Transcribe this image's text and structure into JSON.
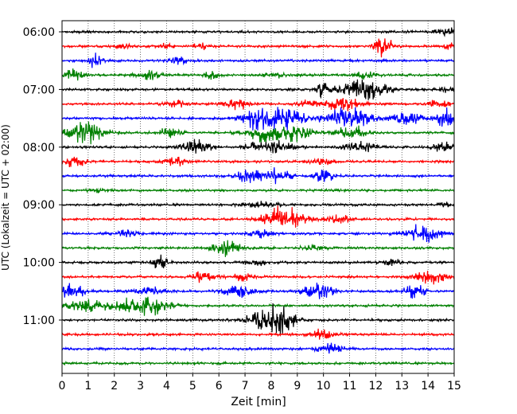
{
  "chart_data": {
    "type": "line",
    "title": "",
    "xlabel": "Zeit  [min]",
    "ylabel": "UTC (Lokalzeit = UTC + 02:00)",
    "xlim": [
      0,
      15
    ],
    "x_ticks": [
      "0",
      "1",
      "2",
      "3",
      "4",
      "5",
      "6",
      "7",
      "8",
      "9",
      "10",
      "11",
      "12",
      "13",
      "14",
      "15"
    ],
    "y_ticks": [
      "06:00",
      "07:00",
      "08:00",
      "09:00",
      "10:00",
      "11:00"
    ],
    "trace_interval_min": 15,
    "grid": "vertical dotted",
    "color_cycle": [
      "#000000",
      "#ff0000",
      "#0000ff",
      "#008000"
    ],
    "series": [
      {
        "start": "06:00",
        "color": "#000000",
        "bursts": [
          [
            14.7,
            0.6,
            0.3
          ]
        ]
      },
      {
        "start": "06:15",
        "color": "#ff0000",
        "bursts": [
          [
            2.3,
            0.5,
            0.2
          ],
          [
            4.0,
            0.4,
            0.2
          ],
          [
            5.3,
            0.5,
            0.2
          ],
          [
            12.3,
            1.6,
            0.25
          ],
          [
            14.8,
            0.4,
            0.2
          ]
        ]
      },
      {
        "start": "06:30",
        "color": "#0000ff",
        "bursts": [
          [
            1.3,
            1.4,
            0.15
          ],
          [
            4.4,
            0.5,
            0.3
          ]
        ]
      },
      {
        "start": "06:45",
        "color": "#008000",
        "bursts": [
          [
            0.4,
            1.0,
            0.3
          ],
          [
            3.3,
            0.7,
            0.3
          ],
          [
            5.7,
            0.5,
            0.2
          ],
          [
            8.1,
            0.4,
            0.3
          ],
          [
            11.6,
            0.5,
            0.3
          ]
        ]
      },
      {
        "start": "07:00",
        "color": "#000000",
        "bursts": [
          [
            10.0,
            1.5,
            0.2
          ],
          [
            11.3,
            1.3,
            0.5
          ],
          [
            11.9,
            1.0,
            0.2
          ],
          [
            12.5,
            0.5,
            0.2
          ],
          [
            14.8,
            0.5,
            0.2
          ]
        ]
      },
      {
        "start": "07:15",
        "color": "#ff0000",
        "bursts": [
          [
            4.4,
            0.5,
            0.3
          ],
          [
            6.7,
            0.9,
            0.3
          ],
          [
            9.4,
            0.5,
            0.3
          ],
          [
            10.6,
            1.2,
            0.3
          ],
          [
            11.2,
            0.5,
            0.3
          ],
          [
            14.4,
            0.6,
            0.3
          ]
        ]
      },
      {
        "start": "07:30",
        "color": "#0000ff",
        "bursts": [
          [
            7.4,
            1.6,
            0.4
          ],
          [
            8.5,
            1.8,
            0.5
          ],
          [
            10.9,
            1.8,
            0.6
          ],
          [
            13.2,
            0.9,
            0.4
          ],
          [
            14.7,
            1.6,
            0.3
          ]
        ]
      },
      {
        "start": "07:45",
        "color": "#008000",
        "bursts": [
          [
            0.9,
            1.8,
            0.5
          ],
          [
            4.1,
            0.7,
            0.3
          ],
          [
            7.8,
            1.4,
            0.5
          ],
          [
            9.0,
            1.2,
            0.4
          ],
          [
            11.1,
            1.1,
            0.4
          ]
        ]
      },
      {
        "start": "08:00",
        "color": "#000000",
        "bursts": [
          [
            5.1,
            1.2,
            0.4
          ],
          [
            7.3,
            0.7,
            0.3
          ],
          [
            8.3,
            0.9,
            0.4
          ],
          [
            11.4,
            0.9,
            0.4
          ],
          [
            14.6,
            0.7,
            0.3
          ]
        ]
      },
      {
        "start": "08:15",
        "color": "#ff0000",
        "bursts": [
          [
            0.5,
            0.9,
            0.25
          ],
          [
            4.3,
            0.8,
            0.3
          ],
          [
            9.9,
            0.5,
            0.3
          ]
        ]
      },
      {
        "start": "08:30",
        "color": "#0000ff",
        "bursts": [
          [
            7.1,
            0.9,
            0.3
          ],
          [
            8.1,
            1.3,
            0.4
          ],
          [
            10.0,
            0.8,
            0.3
          ]
        ]
      },
      {
        "start": "08:45",
        "color": "#008000",
        "bursts": [
          [
            1.5,
            0.3,
            0.3
          ]
        ]
      },
      {
        "start": "09:00",
        "color": "#000000",
        "bursts": [
          [
            7.6,
            0.4,
            0.5
          ],
          [
            14.8,
            0.3,
            0.3
          ]
        ]
      },
      {
        "start": "09:15",
        "color": "#ff0000",
        "bursts": [
          [
            8.5,
            2.2,
            0.5
          ],
          [
            10.6,
            0.6,
            0.3
          ]
        ]
      },
      {
        "start": "09:30",
        "color": "#0000ff",
        "bursts": [
          [
            2.5,
            0.5,
            0.3
          ],
          [
            7.6,
            0.6,
            0.3
          ],
          [
            13.8,
            1.4,
            0.5
          ]
        ]
      },
      {
        "start": "09:45",
        "color": "#008000",
        "bursts": [
          [
            6.3,
            1.2,
            0.35
          ],
          [
            9.6,
            0.4,
            0.3
          ]
        ]
      },
      {
        "start": "10:00",
        "color": "#000000",
        "bursts": [
          [
            3.8,
            1.5,
            0.2
          ],
          [
            7.4,
            0.5,
            0.3
          ],
          [
            12.6,
            0.5,
            0.25
          ]
        ]
      },
      {
        "start": "10:15",
        "color": "#ff0000",
        "bursts": [
          [
            5.4,
            0.8,
            0.3
          ],
          [
            6.9,
            0.5,
            0.3
          ],
          [
            14.1,
            1.0,
            0.4
          ]
        ]
      },
      {
        "start": "10:30",
        "color": "#0000ff",
        "bursts": [
          [
            0.4,
            1.3,
            0.3
          ],
          [
            3.3,
            0.8,
            0.4
          ],
          [
            6.7,
            0.9,
            0.4
          ],
          [
            9.8,
            1.2,
            0.4
          ],
          [
            13.5,
            1.0,
            0.3
          ]
        ]
      },
      {
        "start": "10:45",
        "color": "#008000",
        "bursts": [
          [
            0.9,
            1.0,
            0.5
          ],
          [
            2.5,
            0.8,
            0.5
          ],
          [
            3.4,
            1.3,
            0.5
          ]
        ]
      },
      {
        "start": "11:00",
        "color": "#000000",
        "bursts": [
          [
            7.8,
            1.5,
            0.5
          ],
          [
            8.4,
            1.5,
            0.4
          ]
        ]
      },
      {
        "start": "11:15",
        "color": "#ff0000",
        "bursts": [
          [
            10.0,
            0.8,
            0.3
          ]
        ]
      },
      {
        "start": "11:30",
        "color": "#0000ff",
        "bursts": [
          [
            10.3,
            0.7,
            0.4
          ]
        ]
      },
      {
        "start": "11:45",
        "color": "#008000",
        "bursts": []
      }
    ]
  }
}
